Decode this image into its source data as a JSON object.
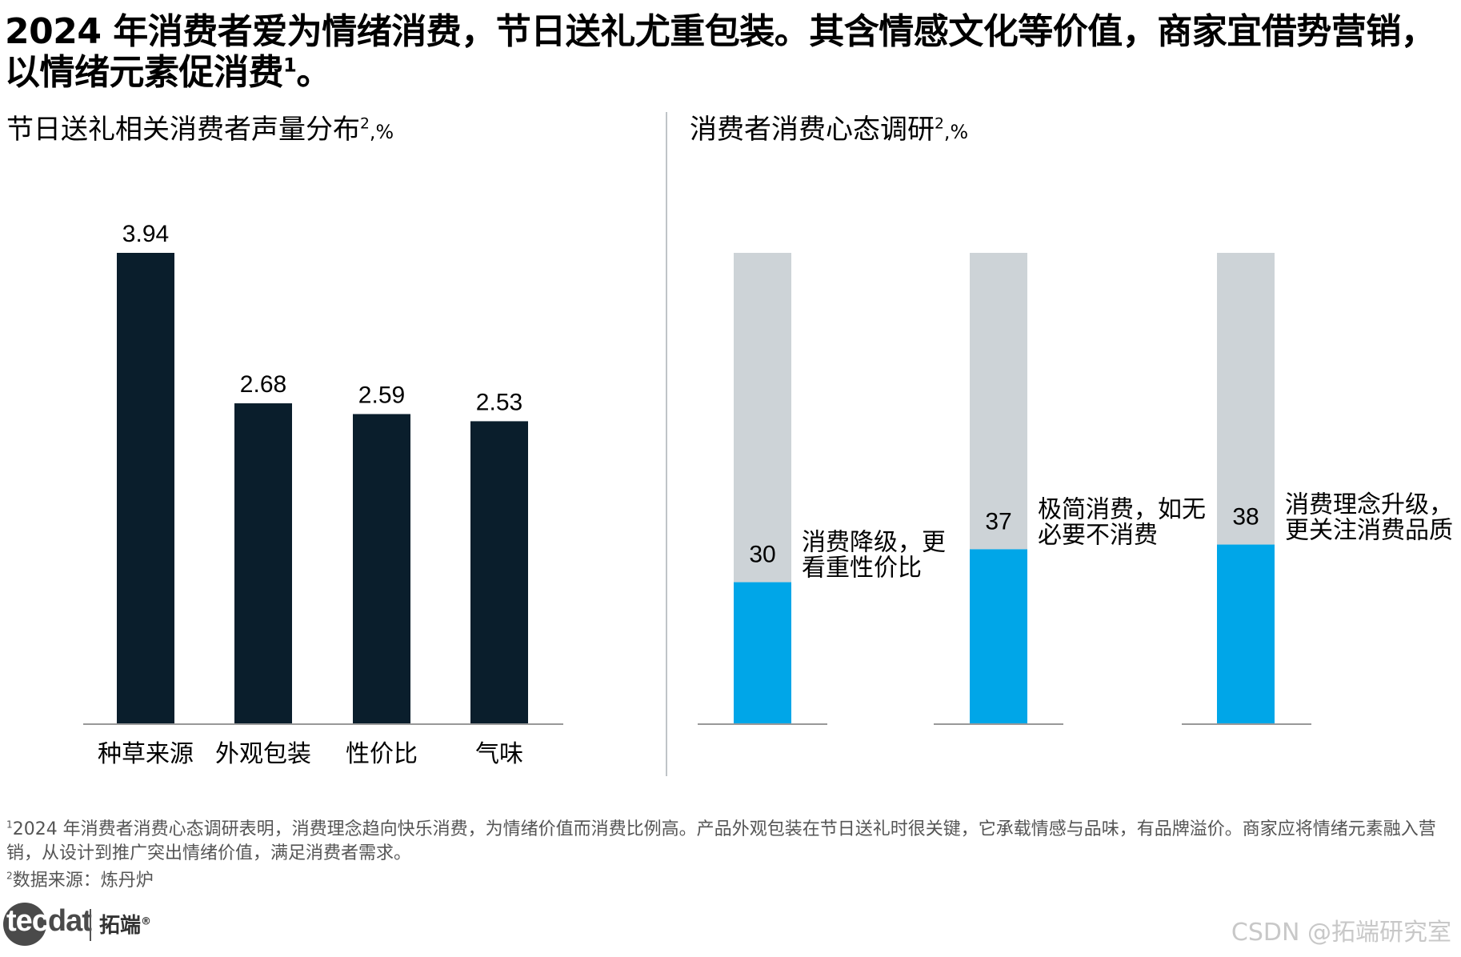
{
  "title": {
    "main": "2024 年消费者爱为情绪消费，节日送礼尤重包装。其含情感文化等价值，商家宜借势营销，以情绪元素促消费",
    "sup": "1",
    "end": "。"
  },
  "left_panel": {
    "title": "节日送礼相关消费者声量分布",
    "sup": "2",
    "unit": ",%"
  },
  "right_panel": {
    "title": "消费者消费心态调研",
    "sup": "2",
    "unit": ",%"
  },
  "colors": {
    "dark_bar": "#0a1e2c",
    "blue": "#00a6e8",
    "gray": "#cdd3d7",
    "axis": "#999999"
  },
  "chart_data": [
    {
      "type": "bar",
      "title": "节日送礼相关消费者声量分布",
      "categories": [
        "种草来源",
        "外观包装",
        "性价比",
        "气味"
      ],
      "values": [
        3.94,
        2.68,
        2.59,
        2.53
      ],
      "data_labels": [
        "3.94",
        "2.68",
        "2.59",
        "2.53"
      ],
      "ylim": [
        0,
        3.94
      ],
      "xlabel": "",
      "ylabel": ""
    },
    {
      "type": "bar",
      "stacked": true,
      "title": "消费者消费心态调研",
      "categories": [
        "消费降级，更看重性价比",
        "极简消费，如无必要不消费",
        "消费理念升级，更关注消费品质"
      ],
      "values": [
        30,
        37,
        38
      ],
      "data_labels": [
        "30",
        "37",
        "38"
      ],
      "annotations": [
        [
          "消费降级，更",
          "看重性价比"
        ],
        [
          "极简消费，如无",
          "必要不消费"
        ],
        [
          "消费理念升级，",
          "更关注消费品质"
        ]
      ],
      "ylim": [
        0,
        100
      ]
    }
  ],
  "footnotes": {
    "fn1_sup": "1",
    "fn1": "2024 年消费者消费心态调研表明，消费理念趋向快乐消费，为情绪价值而消费比例高。产品外观包装在节日送礼时很关键，它承载情感与品味，有品牌溢价。商家应将情绪元素融入营销，从设计到推广突出情绪价值，满足消费者需求。",
    "fn2_sup": "2",
    "fn2": "数据来源：炼丹炉"
  },
  "logo": {
    "en_light": "tec",
    "en_dark": "dat",
    "cn": "拓端",
    "reg": "®"
  },
  "watermark": "CSDN @拓端研究室"
}
